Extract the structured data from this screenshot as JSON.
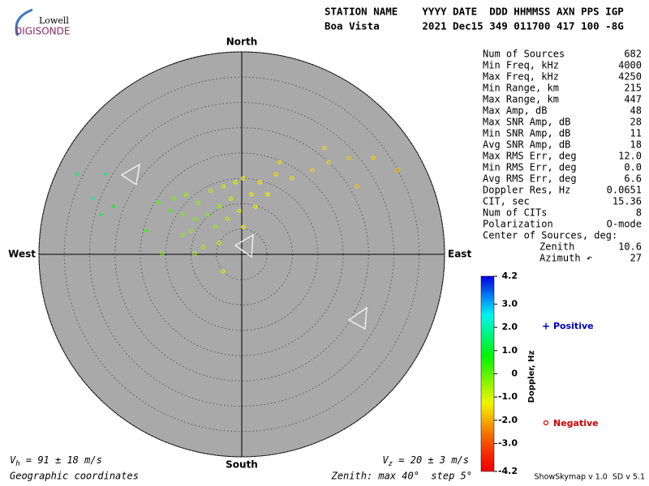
{
  "logo": {
    "line1": "Lowell",
    "line2": "DIGISONDE"
  },
  "header": {
    "line1": "STATION NAME    YYYY DATE  DDD HHMMSS AXN PPS IGP",
    "line2": "Boa Vista       2021 Dec15 349 011700 417 100 -8G"
  },
  "stats": [
    {
      "label": "Num of Sources",
      "value": 682
    },
    {
      "label": "Min Freq, kHz",
      "value": 4000
    },
    {
      "label": "Max Freq, kHz",
      "value": 4250
    },
    {
      "label": "Min Range, km",
      "value": 215
    },
    {
      "label": "Max Range, km",
      "value": 447
    },
    {
      "label": "Max Amp, dB",
      "value": 48
    },
    {
      "label": "Max SNR Amp, dB",
      "value": 28
    },
    {
      "label": "Min SNR Amp, dB",
      "value": 11
    },
    {
      "label": "Avg SNR Amp, dB",
      "value": 18
    },
    {
      "label": "Max RMS Err, deg",
      "value": "12.0"
    },
    {
      "label": "Min RMS Err, deg",
      "value": "0.0"
    },
    {
      "label": "Avg RMS Err, deg",
      "value": 6.6
    },
    {
      "label": "Doppler Res, Hz",
      "value": 0.0651
    },
    {
      "label": "CIT, sec",
      "value": 15.36
    },
    {
      "label": "Num of CITs",
      "value": 8
    },
    {
      "label": "Polarization",
      "value": "O-mode"
    }
  ],
  "center": {
    "title": "Center of Sources, deg:",
    "rows": [
      {
        "label": "Zenith",
        "value": 10.6
      },
      {
        "label": "Azimuth ↶",
        "value": 27
      }
    ]
  },
  "footer": {
    "vh": {
      "symbol": "V",
      "sub": "h",
      "text": " = 91 ± 18 m/s"
    },
    "vz": {
      "symbol": "V",
      "sub": "z",
      "text": " = 20 ± 3 m/s"
    },
    "coords": "Geographic coordinates",
    "zenith_note": "Zenith: max 40°  step 5°",
    "version": "ShowSkymap v 1.0  SD v 5.1"
  },
  "chart_data": {
    "type": "skymap",
    "directions": {
      "north": "North",
      "south": "South",
      "east": "East",
      "west": "West"
    },
    "rlim": [
      0,
      40
    ],
    "rticks": [
      5,
      10,
      15,
      20,
      25,
      30,
      35,
      40
    ],
    "zenith": [
      17.3,
      16.1,
      13.3,
      14.0,
      13.9,
      14.3,
      15.0,
      11.2,
      10.4,
      10.4,
      11.6,
      14.1,
      16.5,
      7.6,
      7.6,
      8.6,
      12.0,
      14.7,
      17.2,
      18.0,
      21.7,
      25.0,
      28.4,
      32.2,
      34.9,
      26.4,
      26.6,
      19.7,
      12.3,
      15.7,
      9.3,
      5.0,
      7.8,
      19.4,
      19.4,
      31.2,
      31.3,
      36.1,
      28.8,
      27.0,
      5.4,
      9.8,
      12.9,
      5.0,
      11.1
    ],
    "azimuth": [
      309.7,
      317,
      320,
      334,
      345,
      355,
      1,
      349,
      335,
      319,
      307,
      304,
      301.5,
      316,
      338,
      357,
      9,
      14,
      23,
      33.4,
      39.9,
      43.2,
      48,
      53.7,
      61.6,
      59.4,
      37.9,
      22.4,
      288,
      270.6,
      271,
      227.6,
      280.6,
      283.8,
      301.9,
      300.5,
      290.7,
      296,
      285.8,
      290.5,
      3.4,
      16,
      23.4,
      296.6,
      294.7
    ],
    "doppler": [
      -0.3,
      -0.5,
      -0.4,
      -0.8,
      -1.0,
      -1.2,
      -1.3,
      -0.9,
      -0.6,
      -0.3,
      -0.2,
      -0.1,
      0.2,
      -0.5,
      -0.8,
      -1.1,
      -1.3,
      -1.4,
      -1.5,
      -1.4,
      -1.6,
      -1.5,
      -1.7,
      -1.6,
      -1.8,
      -1.7,
      -1.5,
      -1.4,
      -0.3,
      -0.2,
      -0.6,
      -1.2,
      -0.7,
      0.3,
      0.1,
      1.5,
      1.8,
      1.6,
      1.2,
      0.8,
      -1.3,
      -1.2,
      -1.3,
      -1.0,
      -0.4
    ],
    "colorbar": {
      "label": "Doppler, Hz",
      "clim": [
        -4.2,
        4.2
      ],
      "ticks": [
        4.2,
        {
          "value": 3.0,
          "label": "3.0"
        },
        {
          "value": 2.0,
          "label": "2.0"
        },
        {
          "value": 1.0,
          "label": "1.0"
        },
        0,
        {
          "value": -1.0,
          "label": "-1.0"
        },
        {
          "value": -2.0,
          "label": "-2.0"
        },
        {
          "value": -3.0,
          "label": "-3.0"
        },
        -4.2
      ]
    },
    "legend": {
      "positive": "Positive",
      "negative": "Negative",
      "positive_color": "#0000c0",
      "negative_color": "#d00000"
    }
  }
}
